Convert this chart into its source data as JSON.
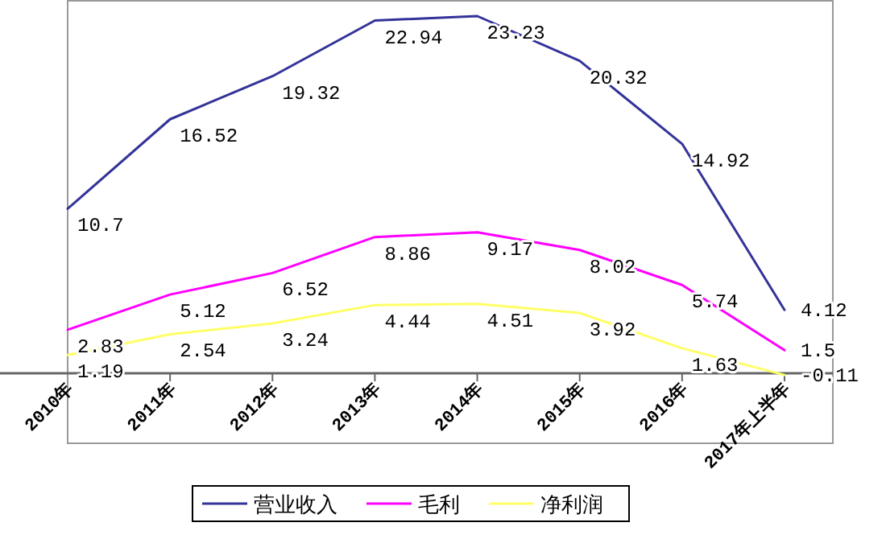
{
  "chart_data": {
    "type": "line",
    "categories": [
      "2010年",
      "2011年",
      "2012年",
      "2013年",
      "2014年",
      "2015年",
      "2016年",
      "2017年上半年"
    ],
    "series": [
      {
        "name": "营业收入",
        "color": "#333399",
        "values": [
          10.7,
          16.52,
          19.32,
          22.94,
          23.23,
          20.32,
          14.92,
          4.12
        ]
      },
      {
        "name": "毛利",
        "color": "#ff00ff",
        "values": [
          2.83,
          5.12,
          6.52,
          8.86,
          9.17,
          8.02,
          5.74,
          1.5
        ]
      },
      {
        "name": "净利润",
        "color": "#ffff66",
        "values": [
          1.19,
          2.54,
          3.24,
          4.44,
          4.51,
          3.92,
          1.63,
          -0.11
        ]
      }
    ],
    "data_labels": true,
    "legend": "bottom",
    "grid": false,
    "marker": "none",
    "line_style": "solid"
  }
}
